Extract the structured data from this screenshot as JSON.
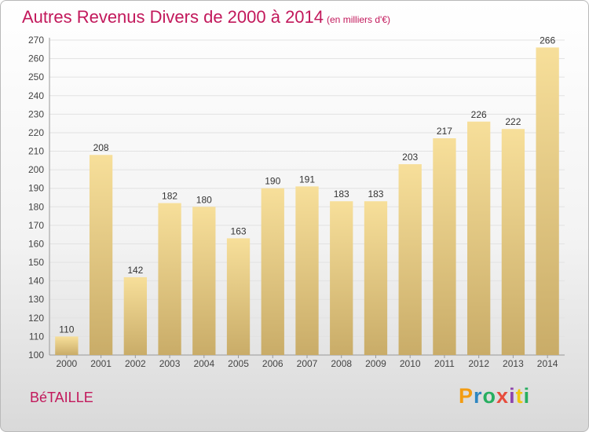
{
  "title": "Autres Revenus Divers de 2000 à 2014",
  "unit": "(en milliers d'€)",
  "commune": "BéTAILLE",
  "logo": {
    "letters": [
      "P",
      "r",
      "o",
      "x",
      "i",
      "t",
      "i"
    ],
    "colors": [
      "#f39c12",
      "#2e86c1",
      "#27ae60",
      "#e74c3c",
      "#8e44ad",
      "#f1c40f",
      "#27ae60"
    ]
  },
  "chart_data": {
    "type": "bar",
    "title": "Autres Revenus Divers de 2000 à 2014",
    "categories": [
      "2000",
      "2001",
      "2002",
      "2003",
      "2004",
      "2005",
      "2006",
      "2007",
      "2008",
      "2009",
      "2010",
      "2011",
      "2012",
      "2013",
      "2014"
    ],
    "values": [
      110,
      208,
      142,
      182,
      180,
      163,
      190,
      191,
      183,
      183,
      203,
      217,
      226,
      222,
      266
    ],
    "ylim": [
      100,
      270
    ],
    "yticks": [
      100,
      110,
      120,
      130,
      140,
      150,
      160,
      170,
      180,
      190,
      200,
      210,
      220,
      230,
      240,
      250,
      260,
      270
    ],
    "grid": true,
    "bar_color_top": "#f7df9a",
    "bar_color_bottom": "#c9ac68"
  }
}
